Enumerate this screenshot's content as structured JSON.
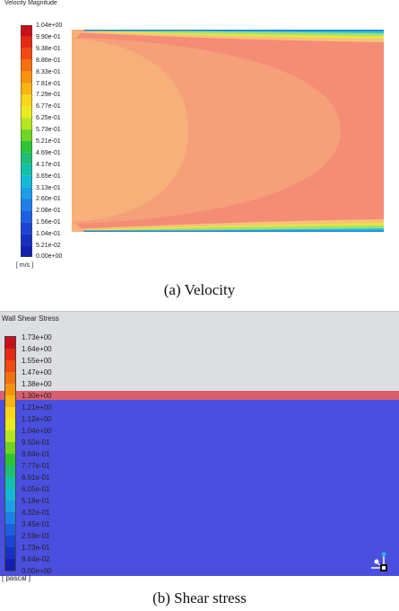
{
  "velocity": {
    "title": "Velocity Magnitude",
    "unit": "[ m/s ]",
    "ticks": [
      "1.04e+00",
      "9.90e-01",
      "9.38e-01",
      "8.86e-01",
      "8.33e-01",
      "7.81e-01",
      "7.29e-01",
      "6.77e-01",
      "6.25e-01",
      "5.73e-01",
      "5.21e-01",
      "4.69e-01",
      "4.17e-01",
      "3.65e-01",
      "3.13e-01",
      "2.60e-01",
      "2.08e-01",
      "1.56e-01",
      "1.04e-01",
      "5.21e-02",
      "0.00e+00"
    ],
    "caption": "(a)  Velocity"
  },
  "shear": {
    "title": "Wall Shear Stress",
    "unit": "[ pascal ]",
    "ticks": [
      "1.73e+00",
      "1.64e+00",
      "1.55e+00",
      "1.47e+00",
      "1.38e+00",
      "1.30e+00",
      "1.21e+00",
      "1.12e+00",
      "1.04e+00",
      "9.50e-01",
      "8.64e-01",
      "7.77e-01",
      "6.91e-01",
      "6.05e-01",
      "5.18e-01",
      "4.32e-01",
      "3.45e-01",
      "2.59e-01",
      "1.73e-01",
      "8.64e-02",
      "0.00e+00"
    ],
    "caption": "(b)  Shear stress"
  },
  "colors": {
    "bg_panel_b": "#dcdee1",
    "field_blue": "#4b4fdf",
    "band_red": "#d95f6f",
    "core_orange": "#f6b07a",
    "outer_red": "#f2837a"
  }
}
